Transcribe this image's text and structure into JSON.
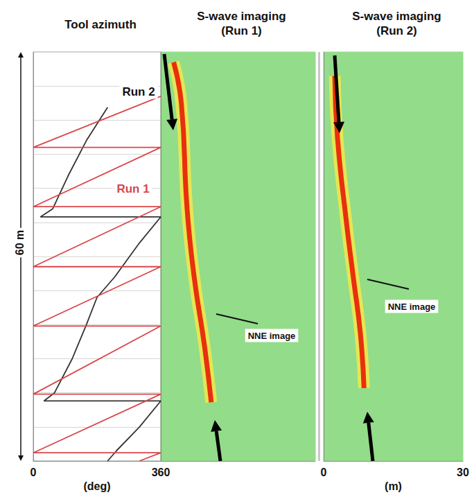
{
  "chart_data": [
    {
      "type": "line",
      "title": "Tool azimuth",
      "xlabel": "(deg)",
      "ylabel": "60 m",
      "xlim": [
        0,
        360
      ],
      "xticks": [
        0,
        360
      ],
      "ylim": [
        0,
        60
      ],
      "yticks": [
        0,
        5,
        10,
        15,
        20,
        25,
        30,
        35,
        40,
        45,
        50,
        55,
        60
      ],
      "grid": true,
      "tick_labels": "x",
      "series": [
        {
          "name": "Run 2",
          "color": "#333333",
          "x": [
            210,
            150,
            100,
            55,
            20,
            360,
            300,
            230,
            180,
            150,
            110,
            60,
            30,
            360,
            300,
            235,
            210
          ],
          "y": [
            8.1,
            13,
            18,
            23,
            24.2,
            24.2,
            28,
            33,
            36,
            40,
            45,
            50,
            51.2,
            51.2,
            55,
            58.5,
            60
          ]
        },
        {
          "name": "Run 1",
          "color": "#d9464a",
          "x": [
            360,
            0,
            360,
            0,
            360,
            0,
            360,
            0,
            360,
            0,
            360,
            0,
            360,
            300
          ],
          "y": [
            6.5,
            14.0,
            14.0,
            22.7,
            22.7,
            31.5,
            31.5,
            40.2,
            40.2,
            50.2,
            50.2,
            58.8,
            58.8,
            60
          ]
        }
      ]
    },
    {
      "type": "line",
      "title": "S-wave imaging (Run 1)",
      "xlim": [
        0,
        30
      ],
      "ylim": [
        0,
        60
      ],
      "tick_labels": false,
      "annotations": [
        "NNE image"
      ],
      "series": [
        {
          "color": "#e8300c",
          "x": [
            2.5,
            4.0,
            5.1,
            6.5,
            8.5,
            9.8
          ],
          "y": [
            1.5,
            7.6,
            22.9,
            33.1,
            43.2,
            51.4
          ]
        }
      ]
    },
    {
      "type": "line",
      "title": "S-wave imaging (Run 2)",
      "xlabel": "(m)",
      "xlim": [
        0,
        30
      ],
      "xticks": [
        0,
        30
      ],
      "ylim": [
        0,
        60
      ],
      "tick_labels": "x",
      "annotations": [
        "NNE image"
      ],
      "series": [
        {
          "color": "#e8300c",
          "x": [
            2.4,
            3.0,
            4.9,
            6.4,
            7.9,
            8.7
          ],
          "y": [
            3.5,
            12.7,
            24.9,
            33.1,
            41.2,
            49.3
          ]
        }
      ]
    }
  ]
}
